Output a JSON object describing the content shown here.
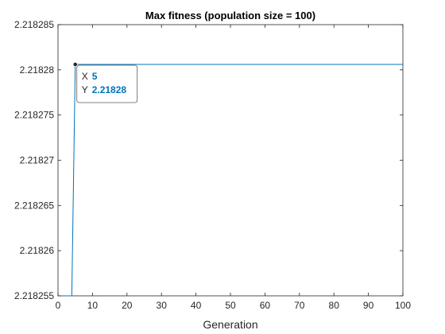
{
  "chart_data": {
    "type": "line",
    "title": "Max fitness (population size = 100)",
    "xlabel": "Generation",
    "ylabel": "",
    "xlim": [
      0,
      100
    ],
    "ylim": [
      2.218255,
      2.218285
    ],
    "x_ticks": [
      0,
      10,
      20,
      30,
      40,
      50,
      60,
      70,
      80,
      90,
      100
    ],
    "x_tick_labels": [
      "0",
      "10",
      "20",
      "30",
      "40",
      "50",
      "60",
      "70",
      "80",
      "90",
      "100"
    ],
    "y_ticks": [
      2.218255,
      2.21826,
      2.218265,
      2.21827,
      2.218275,
      2.21828,
      2.218285
    ],
    "y_tick_labels": [
      "2.218255",
      "2.21826",
      "2.218265",
      "2.21827",
      "2.218275",
      "2.21828",
      "2.218285"
    ],
    "grid": false,
    "line_color": "#0072bd",
    "series": [
      {
        "x": [
          1,
          2,
          3,
          4,
          5,
          6,
          7,
          8,
          9,
          10,
          11,
          12,
          13,
          14,
          15,
          16,
          17,
          18,
          19,
          20,
          21,
          22,
          23,
          24,
          25,
          26,
          27,
          28,
          29,
          30,
          31,
          32,
          33,
          34,
          35,
          36,
          37,
          38,
          39,
          40,
          41,
          42,
          43,
          44,
          45,
          46,
          47,
          48,
          49,
          50,
          51,
          52,
          53,
          54,
          55,
          56,
          57,
          58,
          59,
          60,
          61,
          62,
          63,
          64,
          65,
          66,
          67,
          68,
          69,
          70,
          71,
          72,
          73,
          74,
          75,
          76,
          77,
          78,
          79,
          80,
          81,
          82,
          83,
          84,
          85,
          86,
          87,
          88,
          89,
          90,
          91,
          92,
          93,
          94,
          95,
          96,
          97,
          98,
          99,
          100
        ],
        "y": [
          2.218255,
          2.218255,
          2.218255,
          2.218255,
          2.2182806,
          2.2182806,
          2.2182806,
          2.2182806,
          2.2182806,
          2.2182806,
          2.2182806,
          2.2182806,
          2.2182806,
          2.2182806,
          2.2182806,
          2.2182806,
          2.2182806,
          2.2182806,
          2.2182806,
          2.2182806,
          2.2182806,
          2.2182806,
          2.2182806,
          2.2182806,
          2.2182806,
          2.2182806,
          2.2182806,
          2.2182806,
          2.2182806,
          2.2182806,
          2.2182806,
          2.2182806,
          2.2182806,
          2.2182806,
          2.2182806,
          2.2182806,
          2.2182806,
          2.2182806,
          2.2182806,
          2.2182806,
          2.2182806,
          2.2182806,
          2.2182806,
          2.2182806,
          2.2182806,
          2.2182806,
          2.2182806,
          2.2182806,
          2.2182806,
          2.2182806,
          2.2182806,
          2.2182806,
          2.2182806,
          2.2182806,
          2.2182806,
          2.2182806,
          2.2182806,
          2.2182806,
          2.2182806,
          2.2182806,
          2.2182806,
          2.2182806,
          2.2182806,
          2.2182806,
          2.2182806,
          2.2182806,
          2.2182806,
          2.2182806,
          2.2182806,
          2.2182806,
          2.2182806,
          2.2182806,
          2.2182806,
          2.2182806,
          2.2182806,
          2.2182806,
          2.2182806,
          2.2182806,
          2.2182806,
          2.2182806,
          2.2182806,
          2.2182806,
          2.2182806,
          2.2182806,
          2.2182806,
          2.2182806,
          2.2182806,
          2.2182806,
          2.2182806,
          2.2182806,
          2.2182806,
          2.2182806,
          2.2182806,
          2.2182806,
          2.2182806,
          2.2182806,
          2.2182806,
          2.2182806,
          2.2182806,
          2.2182806
        ]
      }
    ],
    "datatip": {
      "x": 5,
      "y": 2.2182806,
      "x_key": "X",
      "x_text": "5",
      "y_key": "Y",
      "y_text": "2.21828"
    }
  }
}
